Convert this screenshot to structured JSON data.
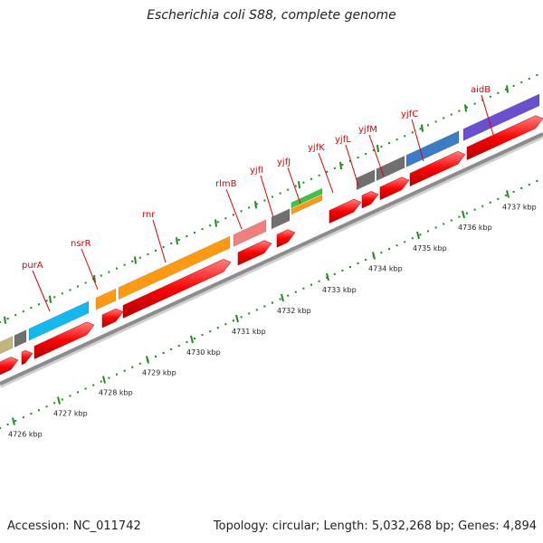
{
  "title": "Escherichia coli S88, complete genome",
  "footer": {
    "accession": "Accession: NC_011742",
    "stats": "Topology: circular; Length: 5,032,268 bp; Genes: 4,894"
  },
  "colors": {
    "backbone": "#8c8c8c",
    "cds": "#ff0000",
    "label": "#e00000",
    "tick": "#1a8a1a"
  },
  "kbp_labels": [
    "4726 kbp",
    "4727 kbp",
    "4728 kbp",
    "4729 kbp",
    "4730 kbp",
    "4731 kbp",
    "4732 kbp",
    "4733 kbp",
    "4734 kbp",
    "4735 kbp",
    "4736 kbp",
    "4737 kbp"
  ],
  "gene_labels": [
    "purA",
    "nsrR",
    "rnr",
    "rlmB",
    "yjfI",
    "yjfJ",
    "yjfK",
    "yjfL",
    "yjfM",
    "yjfC",
    "aidB"
  ],
  "gene_colors": {
    "olive": "#c2b77a",
    "gray": "#707070",
    "cyan": "#15b8ee",
    "orange": "#ff9a10",
    "pink": "#f08080",
    "green": "#3ec43e",
    "blue": "#3a7cc7",
    "purple": "#6a4fd0"
  }
}
